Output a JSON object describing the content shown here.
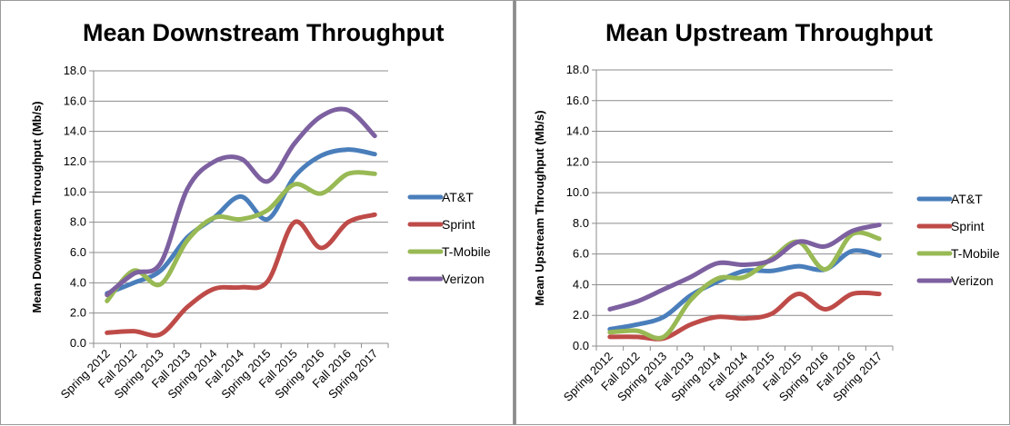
{
  "chart_data": [
    {
      "type": "line",
      "title": "Mean Downstream Throughput",
      "ylabel": "Mean Downstream Throughput  (Mb/s)",
      "xlabel": "",
      "ylim": [
        0,
        18
      ],
      "yticks": [
        "0.0",
        "2.0",
        "4.0",
        "6.0",
        "8.0",
        "10.0",
        "12.0",
        "14.0",
        "16.0",
        "18.0"
      ],
      "grid": true,
      "legend": "right",
      "categories": [
        "Spring 2012",
        "Fall 2012",
        "Spring 2013",
        "Fall 2013",
        "Spring 2014",
        "Fall 2014",
        "Spring 2015",
        "Fall 2015",
        "Spring 2016",
        "Fall 2016",
        "Spring 2017"
      ],
      "series": [
        {
          "name": "AT&T",
          "color": "#4a7ebb",
          "values": [
            3.3,
            4.0,
            4.8,
            7.0,
            8.3,
            9.7,
            8.2,
            11.0,
            12.4,
            12.8,
            12.5
          ]
        },
        {
          "name": "Sprint",
          "color": "#be4b48",
          "values": [
            0.7,
            0.8,
            0.6,
            2.4,
            3.6,
            3.7,
            4.1,
            8.0,
            6.3,
            8.0,
            8.5
          ]
        },
        {
          "name": "T-Mobile",
          "color": "#98b954",
          "values": [
            2.8,
            4.8,
            3.9,
            6.8,
            8.3,
            8.2,
            8.8,
            10.5,
            9.9,
            11.2,
            11.2
          ]
        },
        {
          "name": "Verizon",
          "color": "#7d60a0",
          "values": [
            3.2,
            4.6,
            5.3,
            10.2,
            12.0,
            12.2,
            10.7,
            13.2,
            15.0,
            15.4,
            13.7
          ]
        }
      ]
    },
    {
      "type": "line",
      "title": "Mean Upstream Throughput",
      "ylabel": "Mean Upstream Throughput  (Mb/s)",
      "xlabel": "",
      "ylim": [
        0,
        18
      ],
      "yticks": [
        "0.0",
        "2.0",
        "4.0",
        "6.0",
        "8.0",
        "10.0",
        "12.0",
        "14.0",
        "16.0",
        "18.0"
      ],
      "grid": true,
      "legend": "right",
      "categories": [
        "Spring 2012",
        "Fall 2012",
        "Spring 2013",
        "Fall 2013",
        "Spring 2014",
        "Fall 2014",
        "Spring 2015",
        "Fall 2015",
        "Spring 2016",
        "Fall 2016",
        "Spring 2017"
      ],
      "series": [
        {
          "name": "AT&T",
          "color": "#4a7ebb",
          "values": [
            1.1,
            1.4,
            1.9,
            3.3,
            4.2,
            4.9,
            4.9,
            5.2,
            5.0,
            6.2,
            5.9
          ]
        },
        {
          "name": "Sprint",
          "color": "#be4b48",
          "values": [
            0.6,
            0.6,
            0.5,
            1.4,
            1.9,
            1.8,
            2.1,
            3.4,
            2.4,
            3.4,
            3.4
          ]
        },
        {
          "name": "T-Mobile",
          "color": "#98b954",
          "values": [
            0.9,
            1.0,
            0.6,
            3.0,
            4.4,
            4.5,
            5.7,
            6.8,
            5.0,
            7.3,
            7.0
          ]
        },
        {
          "name": "Verizon",
          "color": "#7d60a0",
          "values": [
            2.4,
            2.9,
            3.7,
            4.5,
            5.4,
            5.3,
            5.6,
            6.8,
            6.5,
            7.5,
            7.9
          ]
        }
      ]
    }
  ]
}
